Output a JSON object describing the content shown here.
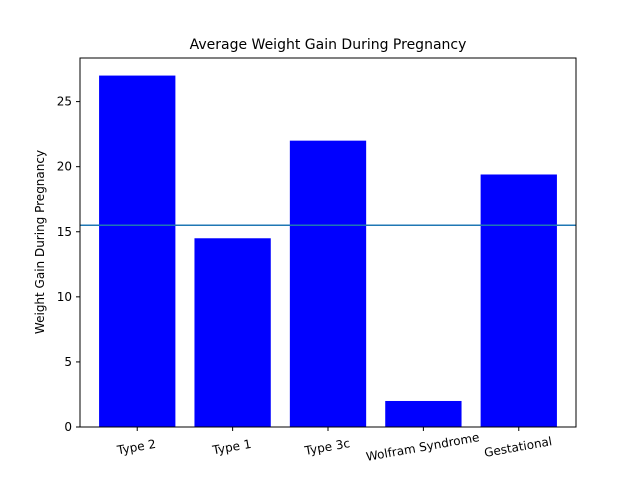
{
  "chart_data": {
    "type": "bar",
    "title": "Average Weight Gain During Pregnancy",
    "ylabel": "Weight Gain During Pregnancy",
    "categories": [
      "Type 2",
      "Type 1",
      "Type 3c",
      "Wolfram Syndrome",
      "Gestational"
    ],
    "values": [
      27,
      14.5,
      22,
      2,
      19.4
    ],
    "ylim": [
      0,
      28.35
    ],
    "yticks": [
      0,
      5,
      10,
      15,
      20,
      25
    ],
    "reference_line": 15.5,
    "bar_color": "#0000ff",
    "line_color": "#1f77b4",
    "grid": false,
    "legend": "none"
  }
}
